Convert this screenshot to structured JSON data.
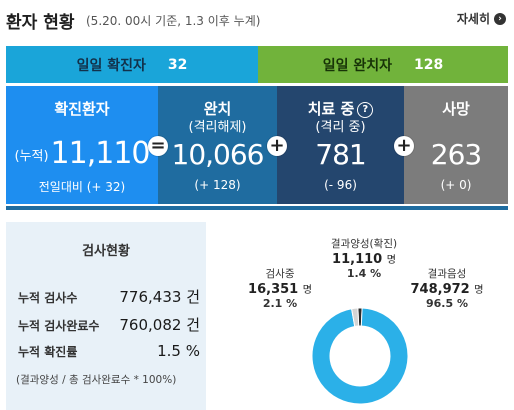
{
  "header": {
    "title": "환자 현황",
    "subtitle": "(5.20. 00시 기준, 1.3 이후 누계)",
    "more_label": "자세히",
    "more_arrow": "›"
  },
  "daily": {
    "confirmed_label": "일일 확진자",
    "confirmed_value": "32",
    "released_label": "일일 완치자",
    "released_value": "128"
  },
  "boxes": {
    "confirmed": {
      "title": "확진환자",
      "prefix": "(누적)",
      "value": "11,110",
      "footer": "전일대비 (+ 32)"
    },
    "released": {
      "title": "완치",
      "subtitle": "(격리해제)",
      "value": "10,066",
      "footer": "(+ 128)"
    },
    "treating": {
      "title": "치료 중",
      "help": "?",
      "subtitle": "(격리 중)",
      "value": "781",
      "footer": "(- 96)"
    },
    "deaths": {
      "title": "사망",
      "value": "263",
      "footer": "(+ 0)"
    },
    "ops": [
      "=",
      "+",
      "+"
    ]
  },
  "tests": {
    "title": "검사현황",
    "rows": [
      {
        "label": "누적 검사수",
        "value": "776,433 건"
      },
      {
        "label": "누적 검사완료수",
        "value": "760,082 건"
      },
      {
        "label": "누적 확진률",
        "value": "1.5 %"
      }
    ],
    "note": "(결과양성 / 총 검사완료수 * 100%)"
  },
  "donut": {
    "positive": {
      "label": "결과양성(확진)",
      "value": "11,110",
      "unit": "명",
      "pct": "1.4 %"
    },
    "testing": {
      "label": "검사중",
      "value": "16,351",
      "unit": "명",
      "pct": "2.1 %"
    },
    "negative": {
      "label": "결과음성",
      "value": "748,972",
      "unit": "명",
      "pct": "96.5 %"
    },
    "shares": {
      "negative": 0.965,
      "testing": 0.021,
      "positive": 0.014
    },
    "colors": {
      "negative": "#2bb0e8",
      "testing": "#d4d4d4",
      "positive": "#2a2a2a"
    }
  },
  "colors": {
    "daily_confirmed": "#1aa5d9",
    "daily_released": "#71b33b",
    "confirmed": "#1e8ef0",
    "released": "#1f6ca0",
    "treating": "#24466e",
    "deaths": "#7c7c7c"
  }
}
